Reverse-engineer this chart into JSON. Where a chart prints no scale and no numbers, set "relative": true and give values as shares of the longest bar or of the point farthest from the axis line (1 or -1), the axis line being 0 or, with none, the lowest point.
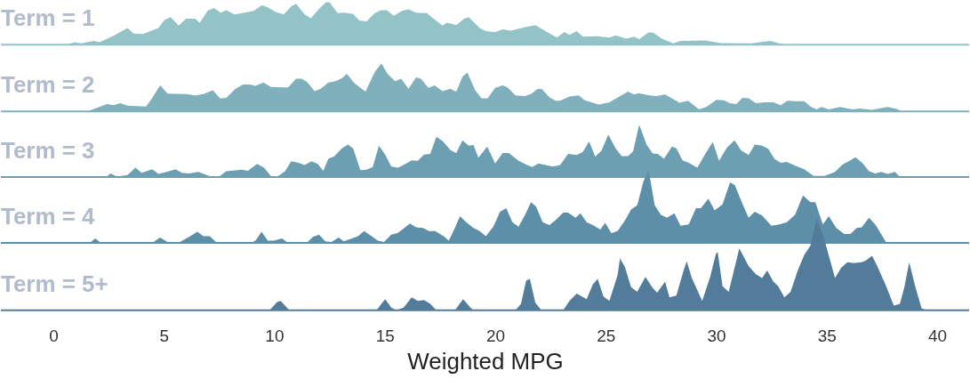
{
  "chart_data": [
    {
      "type": "area",
      "title": "Term = 1",
      "relative": true,
      "xlim": [
        -2.37,
        41.45
      ],
      "xticks": [
        0,
        5,
        10,
        15,
        20,
        25,
        30,
        35,
        40
      ],
      "tick_labels": false,
      "series": [
        {
          "color": "#93c3c7",
          "x": [
            0.56,
            0.98,
            1.26,
            1.82,
            2.1,
            2.8,
            3.36,
            3.64,
            4.06,
            4.76,
            5.03,
            5.31,
            5.68,
            6.01,
            6.43,
            6.63,
            6.99,
            7.27,
            7.58,
            7.83,
            8.2,
            8.67,
            9.09,
            9.45,
            9.71,
            10.07,
            10.43,
            10.77,
            10.99,
            11.38,
            11.66,
            12.03,
            12.34,
            12.5,
            12.87,
            13.17,
            13.57,
            13.85,
            14.18,
            14.55,
            14.83,
            15.1,
            15.41,
            15.8,
            16.08,
            16.42,
            16.92,
            17.12,
            17.62,
            17.82,
            18.24,
            18.6,
            18.8,
            19.3,
            19.58,
            20.0,
            20.34,
            20.7,
            21.4,
            21.82,
            22.38,
            22.8,
            23.13,
            23.36,
            23.69,
            23.97,
            24.62,
            25.17,
            25.45,
            25.93,
            26.29,
            26.52,
            26.94,
            27.13,
            27.55,
            28.06,
            28.39,
            29.51,
            30.21,
            31.61,
            32.45,
            33.01,
            33.71
          ],
          "values": [
            0,
            0.06,
            0.03,
            0.09,
            0.06,
            0.23,
            0.39,
            0.26,
            0.25,
            0.39,
            0.58,
            0.65,
            0.45,
            0.61,
            0.61,
            0.51,
            0.8,
            0.86,
            0.75,
            0.81,
            0.71,
            0.75,
            0.8,
            0.93,
            0.88,
            0.77,
            0.71,
            0.9,
            0.96,
            0.71,
            0.62,
            0.84,
            1.0,
            1.0,
            0.74,
            0.75,
            0.72,
            0.57,
            0.55,
            0.74,
            0.81,
            0.81,
            0.68,
            0.8,
            0.83,
            0.75,
            0.74,
            0.65,
            0.45,
            0.52,
            0.46,
            0.61,
            0.65,
            0.39,
            0.32,
            0.3,
            0.36,
            0.33,
            0.42,
            0.46,
            0.29,
            0.17,
            0.3,
            0.23,
            0.32,
            0.19,
            0.2,
            0.17,
            0.22,
            0.14,
            0.19,
            0.13,
            0.29,
            0.29,
            0.14,
            0.03,
            0.09,
            0.1,
            0.04,
            0.03,
            0.09,
            0.01,
            0
          ]
        }
      ]
    },
    {
      "type": "area",
      "title": "Term = 2",
      "relative": true,
      "xlim": [
        -2.37,
        41.45
      ],
      "xticks": [
        0,
        5,
        10,
        15,
        20,
        25,
        30,
        35,
        40
      ],
      "tick_labels": false,
      "series": [
        {
          "color": "#7fb0bb",
          "x": [
            1.54,
            2.43,
            2.74,
            3.02,
            3.36,
            4.2,
            4.48,
            4.84,
            5.17,
            6.01,
            6.43,
            6.8,
            7.22,
            7.55,
            7.83,
            8.25,
            8.59,
            8.9,
            9.15,
            9.51,
            9.85,
            10.35,
            10.63,
            10.99,
            11.24,
            11.47,
            11.83,
            12.11,
            12.45,
            12.78,
            13.06,
            13.29,
            13.62,
            14.13,
            14.55,
            14.85,
            15.13,
            15.47,
            15.75,
            16.08,
            16.42,
            16.64,
            16.98,
            17.26,
            17.62,
            17.96,
            18.24,
            18.52,
            18.74,
            19.1,
            19.38,
            19.66,
            20.0,
            20.34,
            20.56,
            20.92,
            21.34,
            21.62,
            21.9,
            22.1,
            22.46,
            22.74,
            22.94,
            23.36,
            23.78,
            24.06,
            24.7,
            25.17,
            26.01,
            26.29,
            26.49,
            26.99,
            27.27,
            27.69,
            28.34,
            28.73,
            29.23,
            29.59,
            30.01,
            30.35,
            30.63,
            30.91,
            31.19,
            31.47,
            31.8,
            32.17,
            32.59,
            32.92,
            33.23,
            33.57,
            33.99,
            34.27,
            34.55,
            34.77,
            35.1,
            35.61,
            36.17,
            36.5,
            37.06,
            37.76,
            38.18,
            38.41
          ],
          "values": [
            0,
            0.15,
            0.13,
            0.17,
            0.12,
            0.1,
            0.28,
            0.54,
            0.37,
            0.36,
            0.33,
            0.36,
            0.44,
            0.27,
            0.28,
            0.47,
            0.56,
            0.56,
            0.53,
            0.6,
            0.51,
            0.5,
            0.5,
            0.68,
            0.68,
            0.62,
            0.42,
            0.47,
            0.6,
            0.63,
            0.69,
            0.78,
            0.59,
            0.41,
            0.82,
            1.0,
            0.78,
            0.63,
            0.68,
            0.47,
            0.71,
            0.68,
            0.49,
            0.54,
            0.42,
            0.47,
            0.41,
            0.72,
            0.81,
            0.44,
            0.27,
            0.27,
            0.49,
            0.54,
            0.5,
            0.33,
            0.32,
            0.36,
            0.46,
            0.47,
            0.29,
            0.22,
            0.22,
            0.31,
            0.33,
            0.23,
            0.14,
            0.19,
            0.41,
            0.35,
            0.38,
            0.33,
            0.32,
            0.35,
            0.18,
            0.22,
            0.04,
            0.1,
            0.24,
            0.23,
            0.17,
            0.15,
            0.28,
            0.27,
            0.17,
            0.19,
            0.19,
            0.13,
            0.22,
            0.21,
            0.21,
            0.1,
            0.04,
            0.09,
            0.04,
            0.09,
            0.04,
            0.06,
            0.03,
            0.09,
            0.05,
            0
          ]
        }
      ]
    },
    {
      "type": "area",
      "title": "Term = 3",
      "relative": true,
      "xlim": [
        -2.37,
        41.45
      ],
      "xticks": [
        0,
        5,
        10,
        15,
        20,
        25,
        30,
        35,
        40
      ],
      "tick_labels": false,
      "series": [
        {
          "color": "#6d9fb2",
          "x": [
            2.38,
            2.6,
            2.88,
            3.36,
            3.72,
            4.0,
            4.48,
            4.76,
            5.12,
            5.54,
            5.82,
            6.15,
            6.57,
            7.13,
            7.5,
            7.83,
            8.53,
            8.81,
            9.23,
            9.54,
            9.87,
            10.15,
            10.49,
            10.77,
            11.1,
            11.38,
            11.69,
            11.97,
            12.22,
            12.45,
            12.73,
            13.06,
            13.34,
            13.57,
            13.9,
            14.18,
            14.46,
            14.74,
            15.02,
            15.3,
            15.61,
            15.94,
            16.22,
            16.5,
            16.78,
            17.06,
            17.34,
            17.62,
            17.99,
            18.24,
            18.52,
            18.8,
            19.02,
            19.24,
            19.64,
            20.0,
            20.34,
            20.62,
            21.06,
            21.4,
            21.68,
            21.96,
            22.29,
            22.6,
            22.94,
            23.3,
            23.69,
            23.97,
            24.25,
            24.53,
            24.81,
            25.12,
            25.45,
            25.73,
            26.01,
            26.24,
            26.52,
            26.85,
            27.13,
            27.36,
            27.64,
            28.0,
            28.2,
            28.48,
            28.76,
            29.15,
            29.51,
            29.85,
            30.13,
            30.49,
            30.83,
            31.13,
            31.47,
            31.75,
            32.08,
            32.36,
            32.64,
            32.92,
            33.2,
            33.51,
            33.99,
            34.41,
            34.91,
            35.38,
            35.72,
            36.0,
            36.31,
            36.64,
            36.92,
            37.2,
            37.48,
            37.76,
            38.1,
            38.32
          ],
          "values": [
            0,
            0.07,
            0.01,
            0.04,
            0.18,
            0.08,
            0.15,
            0.06,
            0.1,
            0.15,
            0.08,
            0.07,
            0.1,
            0.01,
            0.01,
            0.11,
            0.14,
            0.12,
            0.25,
            0.18,
            0.01,
            0.01,
            0.11,
            0.3,
            0.27,
            0.23,
            0.3,
            0.25,
            0.12,
            0.35,
            0.4,
            0.55,
            0.62,
            0.55,
            0.13,
            0.14,
            0.19,
            0.6,
            0.43,
            0.2,
            0.18,
            0.25,
            0.32,
            0.31,
            0.43,
            0.44,
            0.77,
            0.69,
            0.51,
            0.46,
            0.7,
            0.6,
            0.61,
            0.37,
            0.58,
            0.26,
            0.46,
            0.46,
            0.31,
            0.24,
            0.19,
            0.26,
            0.23,
            0.2,
            0.23,
            0.44,
            0.42,
            0.48,
            0.68,
            0.39,
            0.5,
            0.81,
            0.55,
            0.4,
            0.4,
            0.49,
            1.0,
            0.62,
            0.45,
            0.44,
            0.35,
            0.58,
            0.55,
            0.32,
            0.27,
            0.18,
            0.44,
            0.67,
            0.31,
            0.56,
            0.7,
            0.51,
            0.42,
            0.62,
            0.6,
            0.54,
            0.35,
            0.27,
            0.29,
            0.23,
            0.15,
            0.02,
            0.02,
            0.1,
            0.24,
            0.3,
            0.38,
            0.26,
            0.11,
            0.07,
            0.1,
            0.06,
            0.1,
            0
          ]
        }
      ]
    },
    {
      "type": "area",
      "title": "Term = 4",
      "relative": true,
      "xlim": [
        -2.37,
        41.45
      ],
      "xticks": [
        0,
        5,
        10,
        15,
        20,
        25,
        30,
        35,
        40
      ],
      "tick_labels": false,
      "series": [
        {
          "color": "#5e8fa8",
          "x": [
            1.66,
            1.9,
            2.15,
            4.48,
            4.84,
            5.17,
            5.73,
            6.15,
            6.52,
            6.8,
            7.08,
            7.41,
            8.95,
            9.15,
            9.43,
            9.71,
            9.99,
            10.35,
            10.63,
            11.47,
            11.75,
            12.03,
            12.31,
            12.59,
            12.92,
            13.15,
            13.43,
            13.79,
            14.07,
            14.41,
            14.69,
            14.97,
            15.3,
            15.58,
            15.8,
            16.14,
            16.42,
            16.73,
            17.01,
            17.29,
            17.71,
            17.9,
            18.13,
            18.41,
            18.69,
            19.02,
            19.3,
            19.58,
            19.92,
            20.22,
            20.5,
            20.78,
            21.06,
            21.34,
            21.62,
            21.85,
            22.15,
            22.46,
            22.74,
            23.08,
            23.3,
            23.64,
            23.86,
            24.14,
            24.48,
            24.76,
            24.98,
            25.26,
            25.54,
            25.87,
            26.15,
            26.43,
            26.71,
            26.94,
            27.22,
            27.5,
            27.78,
            28.11,
            28.39,
            28.76,
            29.09,
            29.31,
            29.65,
            29.93,
            30.29,
            30.63,
            30.85,
            31.19,
            31.47,
            31.75,
            32.08,
            32.5,
            32.87,
            33.2,
            33.57,
            33.93,
            34.27,
            34.49,
            34.83,
            35.1,
            35.44,
            35.8,
            36.08,
            36.36,
            36.59,
            36.92,
            37.2,
            37.71
          ],
          "values": [
            0,
            0.06,
            0,
            0,
            0.07,
            0.01,
            0.01,
            0.08,
            0.15,
            0.09,
            0.09,
            0,
            0,
            0.03,
            0.15,
            0.03,
            0.03,
            0.06,
            0,
            0,
            0.08,
            0.11,
            0.02,
            0.01,
            0.07,
            0.02,
            0.05,
            0.09,
            0.16,
            0.09,
            0.03,
            0.01,
            0.11,
            0.13,
            0.18,
            0.26,
            0.21,
            0.2,
            0.16,
            0.16,
            0.08,
            0.03,
            0.17,
            0.36,
            0.28,
            0.2,
            0.16,
            0.09,
            0.22,
            0.42,
            0.47,
            0.28,
            0.22,
            0.37,
            0.55,
            0.49,
            0.28,
            0.24,
            0.31,
            0.41,
            0.41,
            0.34,
            0.4,
            0.28,
            0.23,
            0.18,
            0.27,
            0.13,
            0.16,
            0.3,
            0.45,
            0.51,
            0.83,
            1.0,
            0.51,
            0.38,
            0.34,
            0.4,
            0.23,
            0.25,
            0.47,
            0.47,
            0.6,
            0.44,
            0.52,
            0.82,
            0.78,
            0.53,
            0.34,
            0.42,
            0.37,
            0.23,
            0.25,
            0.28,
            0.38,
            0.64,
            0.55,
            0.55,
            0.25,
            0.36,
            0.2,
            0.12,
            0.12,
            0.2,
            0.21,
            0.34,
            0.25,
            0
          ]
        }
      ]
    },
    {
      "type": "area",
      "title": "Term = 5+",
      "relative": true,
      "xlabel": "Weighted MPG",
      "xlim": [
        -2.37,
        41.45
      ],
      "xticks": [
        0,
        5,
        10,
        15,
        20,
        25,
        30,
        35,
        40
      ],
      "tick_labels": "x",
      "series": [
        {
          "color": "#527c99",
          "x": [
            9.79,
            10.13,
            10.29,
            10.69,
            14.63,
            15.02,
            15.3,
            15.52,
            15.86,
            16.22,
            16.5,
            16.78,
            17.06,
            17.34,
            18.18,
            18.55,
            18.88,
            19.02,
            20.92,
            21.17,
            21.4,
            21.57,
            21.82,
            22.1,
            23.08,
            23.36,
            23.69,
            24.14,
            24.42,
            24.64,
            24.9,
            25.17,
            25.54,
            25.65,
            25.87,
            26.15,
            26.43,
            26.8,
            27.13,
            27.33,
            27.69,
            27.89,
            28.2,
            28.53,
            28.67,
            28.9,
            29.37,
            29.73,
            29.99,
            30.07,
            30.29,
            30.57,
            31.05,
            31.47,
            31.8,
            32.08,
            32.31,
            32.59,
            32.81,
            33.09,
            33.37,
            33.71,
            33.99,
            34.27,
            34.55,
            34.88,
            35.16,
            35.38,
            35.66,
            35.94,
            36.22,
            36.59,
            36.78,
            37.06,
            37.29,
            37.68,
            38.04,
            38.32,
            38.52,
            38.74,
            39.02,
            39.3,
            39.58
          ],
          "values": [
            0,
            0.09,
            0.1,
            0,
            0,
            0.12,
            0.03,
            0,
            0.03,
            0.14,
            0.1,
            0.11,
            0.07,
            0,
            0,
            0.12,
            0.03,
            0,
            0,
            0.07,
            0.32,
            0.34,
            0.08,
            0,
            0,
            0.1,
            0.18,
            0.12,
            0.28,
            0.34,
            0.15,
            0.1,
            0.38,
            0.56,
            0.47,
            0.25,
            0.2,
            0.36,
            0.24,
            0.19,
            0.31,
            0.14,
            0.16,
            0.43,
            0.53,
            0.35,
            0.1,
            0.36,
            0.61,
            0.63,
            0.26,
            0.2,
            0.67,
            0.48,
            0.39,
            0.35,
            0.43,
            0.31,
            0.26,
            0.14,
            0.2,
            0.44,
            0.6,
            0.7,
            1.0,
            0.78,
            0.54,
            0.35,
            0.46,
            0.52,
            0.51,
            0.52,
            0.54,
            0.59,
            0.48,
            0.27,
            0.05,
            0.07,
            0.25,
            0.52,
            0.25,
            0.02,
            0
          ]
        }
      ]
    }
  ]
}
